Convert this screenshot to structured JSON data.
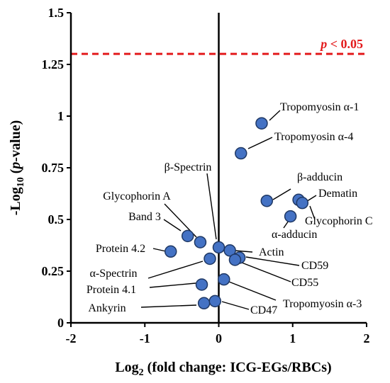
{
  "chart_data": {
    "type": "scatter",
    "xlim": [
      -2,
      2
    ],
    "ylim": [
      0,
      1.5
    ],
    "xticks": [
      "-2",
      "-1",
      "0",
      "1",
      "2"
    ],
    "yticks": [
      "0",
      "0.25",
      "0.5",
      "0.75",
      "1",
      "1.25",
      "1.5"
    ],
    "xlabel_parts": [
      "Log",
      "2",
      " (fold change: ICG-EGs/RBCs)"
    ],
    "ylabel_parts": [
      "-Log",
      "10",
      " (",
      "p",
      "-value)"
    ],
    "threshold": {
      "y": 1.30103,
      "label_p": "p",
      "label_rest": " < 0.05",
      "color": "#e31a1c"
    },
    "point_color": "#4472c4",
    "points": [
      {
        "name": "Tropomyosin α-1",
        "x": 0.58,
        "y": 0.965
      },
      {
        "name": "Tropomyosin α-4",
        "x": 0.3,
        "y": 0.82
      },
      {
        "name": "β-Spectrin",
        "x": 0.0,
        "y": 0.365
      },
      {
        "name": "Glycophorin A",
        "x": -0.25,
        "y": 0.39
      },
      {
        "name": "Band 3",
        "x": -0.42,
        "y": 0.42
      },
      {
        "name": "Protein 4.2",
        "x": -0.65,
        "y": 0.345
      },
      {
        "name": "α-Spectrin",
        "x": -0.12,
        "y": 0.31
      },
      {
        "name": "Protein 4.1",
        "x": -0.23,
        "y": 0.185
      },
      {
        "name": "Ankyrin",
        "x": -0.2,
        "y": 0.095
      },
      {
        "name": "CD47",
        "x": -0.05,
        "y": 0.105
      },
      {
        "name": "Tropomyosin α-3",
        "x": 0.07,
        "y": 0.21
      },
      {
        "name": "Actin",
        "x": 0.15,
        "y": 0.35
      },
      {
        "name": "CD59",
        "x": 0.28,
        "y": 0.315
      },
      {
        "name": "CD55",
        "x": 0.22,
        "y": 0.305
      },
      {
        "name": "β-adducin",
        "x": 0.65,
        "y": 0.59
      },
      {
        "name": "Dematin",
        "x": 1.08,
        "y": 0.595
      },
      {
        "name": "Glycophorin C",
        "x": 1.13,
        "y": 0.58
      },
      {
        "name": "α-adducin",
        "x": 0.97,
        "y": 0.515
      }
    ]
  }
}
